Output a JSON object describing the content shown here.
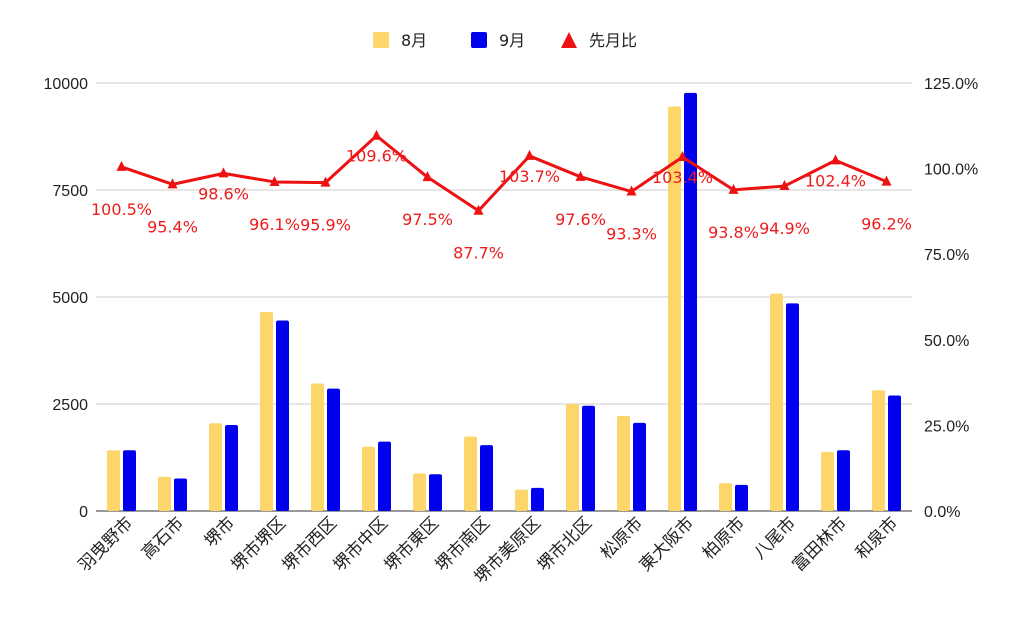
{
  "chart_data": {
    "type": "bar",
    "categories": [
      "羽曳野市",
      "高石市",
      "堺市",
      "堺市堺区",
      "堺市西区",
      "堺市中区",
      "堺市東区",
      "堺市南区",
      "堺市美原区",
      "堺市北区",
      "松原市",
      "東大阪市",
      "柏原市",
      "八尾市",
      "富田林市",
      "和泉市"
    ],
    "series": [
      {
        "name": "8月",
        "kind": "bar",
        "axis": "left",
        "color": "#fdd66b",
        "values": [
          1420,
          800,
          2050,
          4650,
          2980,
          1500,
          880,
          1740,
          500,
          2500,
          2220,
          9450,
          650,
          5080,
          1380,
          2820
        ]
      },
      {
        "name": "9月",
        "kind": "bar",
        "axis": "left",
        "color": "#0000ee",
        "values": [
          1420,
          760,
          2010,
          4450,
          2860,
          1620,
          860,
          1540,
          540,
          2460,
          2060,
          9770,
          610,
          4850,
          1420,
          2700
        ]
      },
      {
        "name": "先月比",
        "kind": "line",
        "axis": "right",
        "color": "#ee1111",
        "values": [
          100.5,
          95.4,
          98.6,
          96.1,
          95.9,
          109.6,
          97.5,
          87.7,
          103.7,
          97.6,
          93.3,
          103.4,
          93.8,
          94.9,
          102.4,
          96.2
        ],
        "labels": [
          "100.5%",
          "95.4%",
          "98.6%",
          "96.1%",
          "95.9%",
          "109.6%",
          "97.5%",
          "87.7%",
          "103.7%",
          "97.6%",
          "93.3%",
          "103.4%",
          "93.8%",
          "94.9%",
          "102.4%",
          "96.2%"
        ]
      }
    ],
    "yleft": {
      "ylim": [
        0,
        10000
      ],
      "ticks": [
        0,
        2500,
        5000,
        7500,
        10000
      ],
      "tick_labels": [
        "0",
        "2500",
        "5000",
        "7500",
        "10000"
      ]
    },
    "yright": {
      "ylim": [
        0,
        125
      ],
      "ticks": [
        0,
        25,
        50,
        75,
        100,
        125
      ],
      "tick_labels": [
        "0.0%",
        "25.0%",
        "50.0%",
        "75.0%",
        "100.0%",
        "125.0%"
      ]
    },
    "grid": true,
    "legend": "top-center"
  }
}
